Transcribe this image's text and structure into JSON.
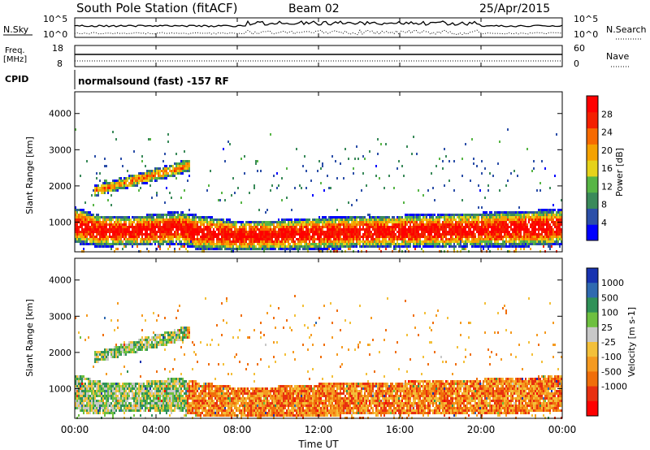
{
  "header": {
    "station": "South Pole Station (fitACF)",
    "beam": "Beam 02",
    "date": "25/Apr/2015"
  },
  "top_panels": {
    "nsky_label": "N.Sky",
    "nsearch_label": "N.Search",
    "noise_ticks_left": [
      "10^5",
      "10^0"
    ],
    "noise_ticks_right": [
      "10^5",
      "10^0"
    ],
    "freq_label": "Freq.",
    "freq_unit": "[MHz]",
    "freq_ticks": [
      "18",
      "8"
    ],
    "nave_label": "Nave",
    "nave_ticks": [
      "60",
      "0"
    ],
    "cpid_label": "CPID",
    "cpid_text": "normalsound (fast) -157 RF"
  },
  "colors": {
    "power_scale": [
      "#0000ff",
      "#2c4fa8",
      "#3a8a5a",
      "#57b545",
      "#e6d21a",
      "#f5a200",
      "#f76a00",
      "#f42000",
      "#ff0000"
    ],
    "velocity_scale": [
      "#1833b0",
      "#2f6ab0",
      "#2f9158",
      "#6ec040",
      "#c8c8c8",
      "#f3c03a",
      "#f59a20",
      "#f06e0a",
      "#e83010",
      "#ff0000"
    ]
  },
  "chart_data": [
    {
      "type": "heatmap",
      "panel": "power",
      "x_axis": {
        "label": "Time UT",
        "ticks": [
          "00:00",
          "04:00",
          "08:00",
          "12:00",
          "16:00",
          "20:00",
          "00:00"
        ],
        "range_hours": [
          0,
          24
        ]
      },
      "y_axis": {
        "label": "Slant Range [km]",
        "ticks": [
          "1000",
          "2000",
          "3000",
          "4000"
        ],
        "range": [
          180,
          4600
        ]
      },
      "colorbar": {
        "label": "Power [dB]",
        "ticks": [
          "4",
          "8",
          "12",
          "16",
          "20",
          "24",
          "28"
        ],
        "range": [
          0,
          32
        ]
      },
      "bands": [
        {
          "name": "main",
          "t": [
            0,
            1,
            2,
            3,
            4,
            5,
            6,
            8,
            10,
            12,
            14,
            16,
            18,
            20,
            22,
            24
          ],
          "center_km": [
            950,
            800,
            780,
            780,
            820,
            880,
            750,
            650,
            680,
            720,
            760,
            780,
            800,
            820,
            850,
            900
          ],
          "width_km": [
            500,
            450,
            420,
            420,
            450,
            450,
            480,
            420,
            420,
            450,
            450,
            450,
            470,
            480,
            500,
            500
          ],
          "peak_db": 30
        },
        {
          "name": "upper",
          "t": [
            1.0,
            2.0,
            3.0,
            4.0,
            5.0,
            5.5
          ],
          "center_km": [
            1900,
            2050,
            2200,
            2350,
            2500,
            2600
          ],
          "width_km": [
            150,
            160,
            170,
            180,
            180,
            180
          ],
          "peak_db": 22
        }
      ]
    },
    {
      "type": "heatmap",
      "panel": "velocity",
      "x_axis": {
        "label": "Time UT",
        "ticks": [
          "00:00",
          "04:00",
          "08:00",
          "12:00",
          "16:00",
          "20:00",
          "00:00"
        ],
        "range_hours": [
          0,
          24
        ]
      },
      "y_axis": {
        "label": "Slant Range [km]",
        "ticks": [
          "1000",
          "2000",
          "3000",
          "4000"
        ],
        "range": [
          180,
          4600
        ]
      },
      "colorbar": {
        "label": "Velocity [m s-1]",
        "ticks": [
          "1000",
          "500",
          "100",
          "25",
          "-25",
          "-100",
          "-500",
          "-1000"
        ]
      },
      "dominant_velocity": {
        "00:00-05:00": "+100 to +500",
        "06:00-24:00": "-100 to -500"
      }
    }
  ]
}
